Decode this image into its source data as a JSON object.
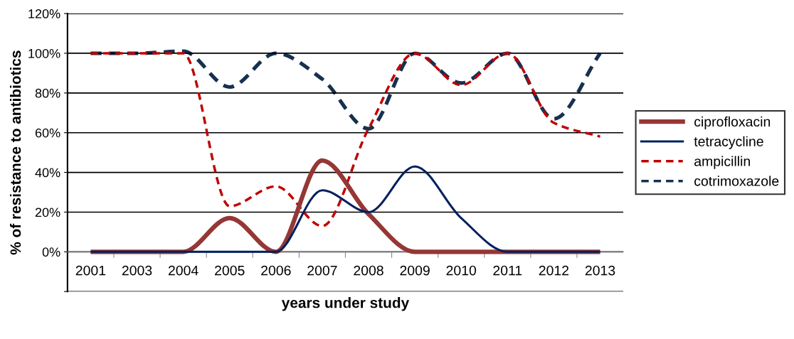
{
  "chart_data": {
    "type": "line",
    "xlabel": "years under study",
    "ylabel": "% of resistance to antibiotics",
    "categories": [
      "2001",
      "2003",
      "2004",
      "2005",
      "2006",
      "2007",
      "2008",
      "2009",
      "2010",
      "2011",
      "2012",
      "2013"
    ],
    "series": [
      {
        "name": "ciprofloxacin",
        "color": "#953735",
        "line_style": "solid",
        "values": [
          0,
          0,
          0,
          17,
          0,
          46,
          19,
          0,
          0,
          0,
          0,
          0
        ]
      },
      {
        "name": "tetracycline",
        "color": "#002060",
        "line_style": "solid",
        "values": [
          0,
          0,
          0,
          0,
          0,
          31,
          20,
          43,
          17,
          0,
          0,
          0
        ]
      },
      {
        "name": "ampicillin",
        "color": "#c00000",
        "line_style": "dashed",
        "values": [
          100,
          100,
          100,
          23,
          33,
          13,
          62,
          100,
          84,
          100,
          65,
          58
        ]
      },
      {
        "name": "cotrimoxazole",
        "color": "#17304f",
        "line_style": "dashed",
        "values": [
          100,
          100,
          101,
          83,
          100,
          87,
          62,
          100,
          85,
          100,
          67,
          100
        ]
      }
    ],
    "ylim": [
      -20,
      120
    ],
    "yticks": [
      {
        "value": -20,
        "label": null
      },
      {
        "value": 0,
        "label": "0%"
      },
      {
        "value": 20,
        "label": "20%"
      },
      {
        "value": 40,
        "label": "40%"
      },
      {
        "value": 60,
        "label": "60%"
      },
      {
        "value": 80,
        "label": "80%"
      },
      {
        "value": 100,
        "label": "100%"
      },
      {
        "value": 120,
        "label": "120%"
      }
    ],
    "grid": "y",
    "legend": "right",
    "marker": "none"
  }
}
